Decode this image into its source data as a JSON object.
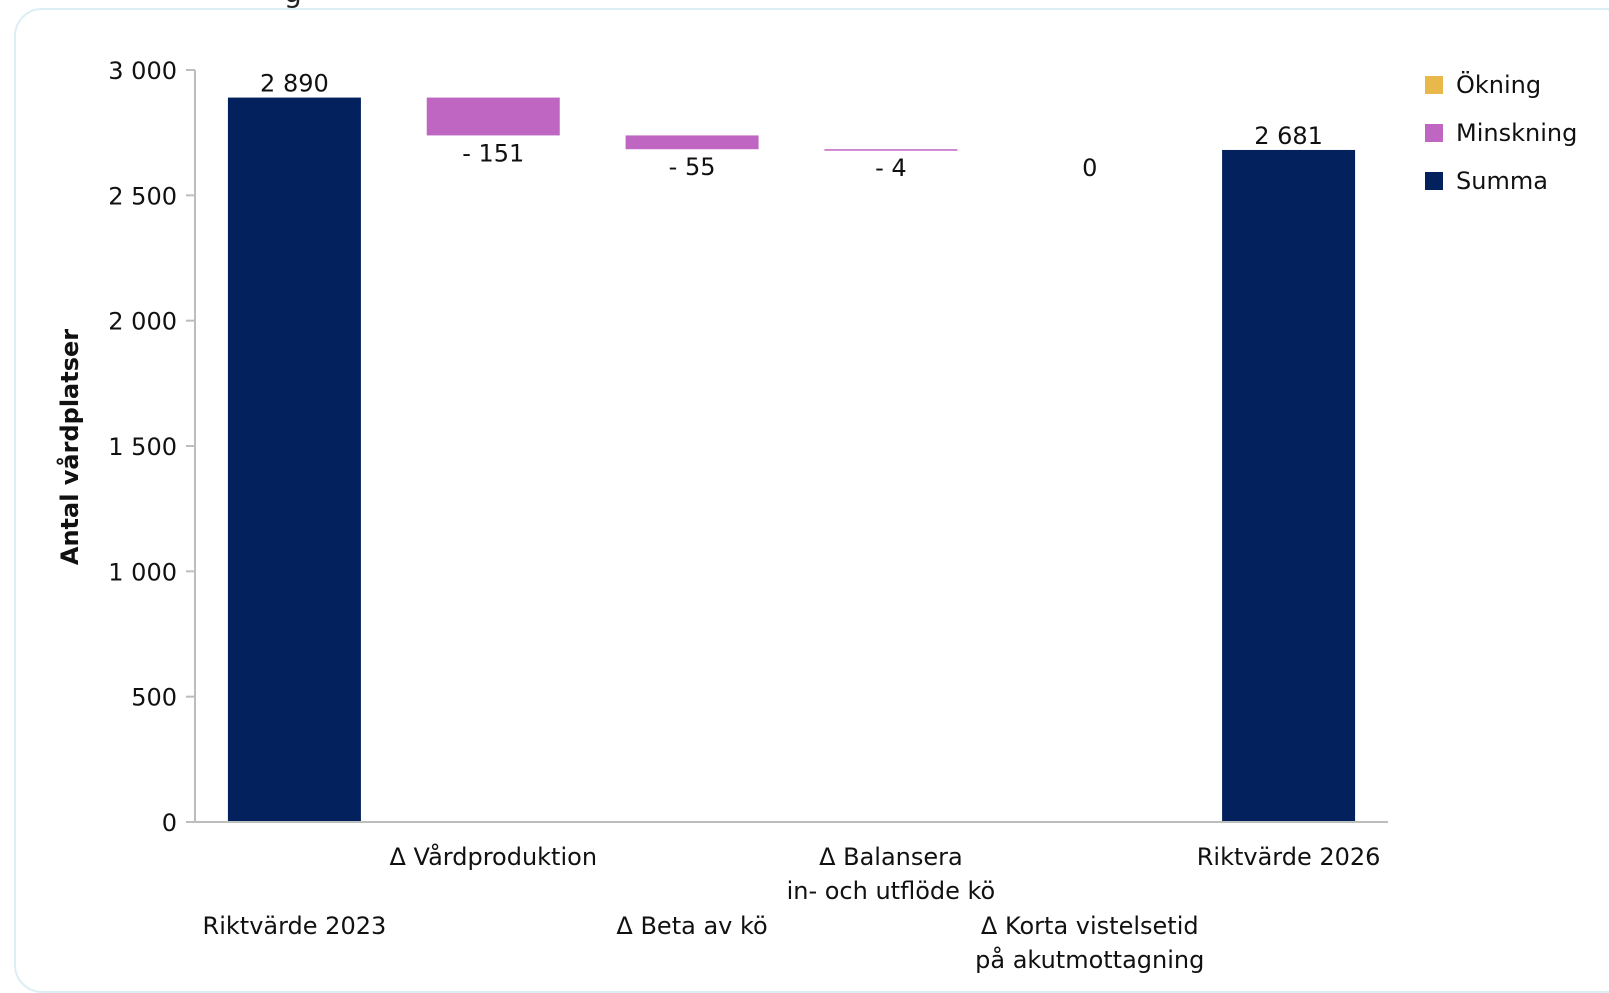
{
  "title_fragment": "g",
  "chart_data": {
    "type": "bar",
    "subtype": "waterfall",
    "ylabel": "Antal vårdplatser",
    "ylim": [
      0,
      3000
    ],
    "yticks": [
      {
        "value": 0,
        "label": "0"
      },
      {
        "value": 500,
        "label": "500"
      },
      {
        "value": 1000,
        "label": "1 000"
      },
      {
        "value": 1500,
        "label": "1 500"
      },
      {
        "value": 2000,
        "label": "2 000"
      },
      {
        "value": 2500,
        "label": "2 500"
      },
      {
        "value": 3000,
        "label": "3 000"
      }
    ],
    "categories": [
      {
        "lines": [
          "Riktvärde 2023"
        ],
        "level": "low"
      },
      {
        "lines": [
          "Δ Vårdproduktion"
        ],
        "level": "high"
      },
      {
        "lines": [
          "Δ Beta av kö"
        ],
        "level": "low"
      },
      {
        "lines": [
          "Δ Balansera",
          "in- och utflöde kö"
        ],
        "level": "high"
      },
      {
        "lines": [
          "Δ Korta vistelsetid",
          "på akutmottagning"
        ],
        "level": "low"
      },
      {
        "lines": [
          "Riktvärde 2026"
        ],
        "level": "high"
      }
    ],
    "bars": [
      {
        "kind": "total",
        "start": 0,
        "end": 2890,
        "label": "2 890"
      },
      {
        "kind": "decrease",
        "start": 2890,
        "end": 2739,
        "label": "- 151"
      },
      {
        "kind": "decrease",
        "start": 2739,
        "end": 2684,
        "label": "- 55"
      },
      {
        "kind": "decrease",
        "start": 2684,
        "end": 2680,
        "label": "- 4"
      },
      {
        "kind": "none",
        "start": 2680,
        "end": 2680,
        "label": "0"
      },
      {
        "kind": "total",
        "start": 0,
        "end": 2681,
        "label": "2 681"
      }
    ],
    "legend": {
      "position": "top-right",
      "items": [
        {
          "key": "increase",
          "label": "Ökning",
          "color": "#e8b84b"
        },
        {
          "key": "decrease",
          "label": "Minskning",
          "color": "#be66c2"
        },
        {
          "key": "total",
          "label": "Summa",
          "color": "#03215d"
        }
      ]
    },
    "colors": {
      "total": "#03215d",
      "decrease": "#be66c2",
      "increase": "#e8b84b",
      "axis": "#bdbdbd"
    }
  }
}
